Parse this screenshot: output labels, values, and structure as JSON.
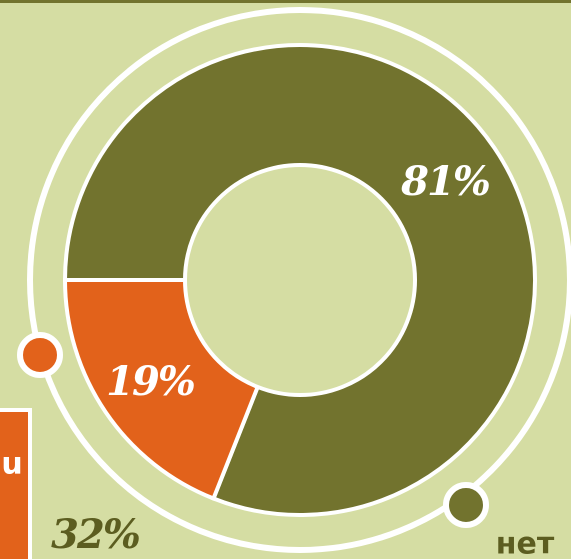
{
  "chart_data": {
    "type": "donut",
    "values": [
      81,
      19
    ],
    "value_labels": [
      "81%",
      "19%"
    ],
    "colors": [
      "#72732e",
      "#e2621b"
    ],
    "start_angle": 270,
    "annotations": [
      "32%",
      "нет",
      "u"
    ]
  }
}
